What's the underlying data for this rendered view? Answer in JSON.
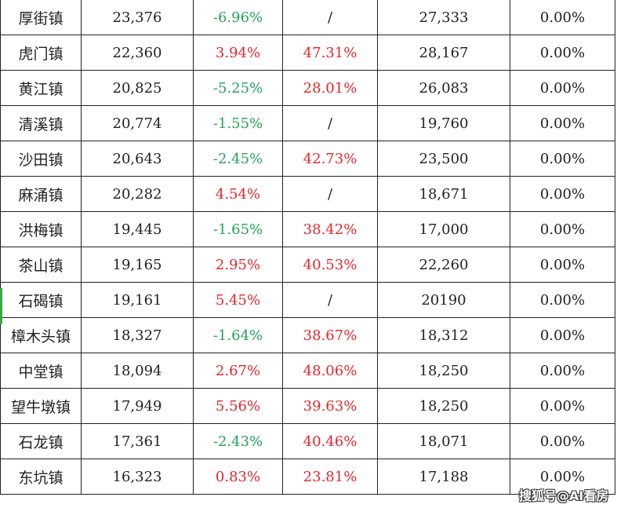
{
  "colors": {
    "positive": "#e8262c",
    "negative": "#25a35a",
    "selection": "#3aa64a"
  },
  "selected_row": 8,
  "rows": [
    {
      "name": "厚街镇",
      "value": "23,376",
      "change": "-6.96%",
      "rate": "/",
      "col5": "27,333",
      "col6": "0.00%"
    },
    {
      "name": "虎门镇",
      "value": "22,360",
      "change": "3.94%",
      "rate": "47.31%",
      "col5": "28,167",
      "col6": "0.00%"
    },
    {
      "name": "黄江镇",
      "value": "20,825",
      "change": "-5.25%",
      "rate": "28.01%",
      "col5": "26,083",
      "col6": "0.00%"
    },
    {
      "name": "清溪镇",
      "value": "20,774",
      "change": "-1.55%",
      "rate": "/",
      "col5": "19,760",
      "col6": "0.00%"
    },
    {
      "name": "沙田镇",
      "value": "20,643",
      "change": "-2.45%",
      "rate": "42.73%",
      "col5": "23,500",
      "col6": "0.00%"
    },
    {
      "name": "麻涌镇",
      "value": "20,282",
      "change": "4.54%",
      "rate": "/",
      "col5": "18,671",
      "col6": "0.00%"
    },
    {
      "name": "洪梅镇",
      "value": "19,445",
      "change": "-1.65%",
      "rate": "38.42%",
      "col5": "17,000",
      "col6": "0.00%"
    },
    {
      "name": "茶山镇",
      "value": "19,165",
      "change": "2.95%",
      "rate": "40.53%",
      "col5": "22,260",
      "col6": "0.00%"
    },
    {
      "name": "石碣镇",
      "value": "19,161",
      "change": "5.45%",
      "rate": "/",
      "col5": "20190",
      "col6": "0.00%"
    },
    {
      "name": "樟木头镇",
      "value": "18,327",
      "change": "-1.64%",
      "rate": "38.67%",
      "col5": "18,312",
      "col6": "0.00%"
    },
    {
      "name": "中堂镇",
      "value": "18,094",
      "change": "2.67%",
      "rate": "48.06%",
      "col5": "18,250",
      "col6": "0.00%"
    },
    {
      "name": "望牛墩镇",
      "value": "17,949",
      "change": "5.56%",
      "rate": "39.63%",
      "col5": "18,250",
      "col6": "0.00%"
    },
    {
      "name": "石龙镇",
      "value": "17,361",
      "change": "-2.43%",
      "rate": "40.46%",
      "col5": "18,071",
      "col6": "0.00%"
    },
    {
      "name": "东坑镇",
      "value": "16,323",
      "change": "0.83%",
      "rate": "23.81%",
      "col5": "17,188",
      "col6": "0.00%"
    }
  ],
  "watermark": "搜狐号@AI看房"
}
